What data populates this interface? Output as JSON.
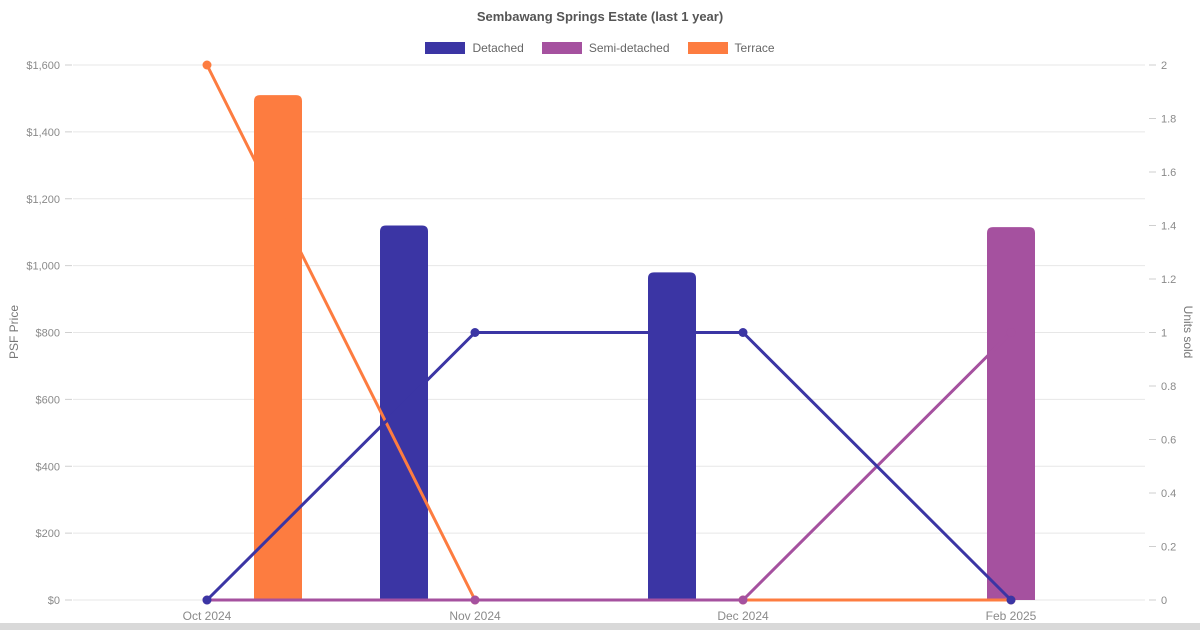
{
  "page": {
    "background": "#ffffff",
    "bottom_bar_color": "#d9d9d9"
  },
  "chart_data": {
    "type": "bar+line combo",
    "title": "Sembawang Springs Estate (last 1 year)",
    "categories": [
      "Oct 2024",
      "Nov 2024",
      "Dec 2024",
      "Feb 2025"
    ],
    "left_axis": {
      "label": "PSF Price",
      "min": 0,
      "max": 1600,
      "tick_step": 200,
      "tick_labels": [
        "$0",
        "$200",
        "$400",
        "$600",
        "$800",
        "$1,000",
        "$1,200",
        "$1,400",
        "$1,600"
      ]
    },
    "right_axis": {
      "label": "Units sold",
      "min": 0,
      "max": 2,
      "tick_step": 0.2,
      "tick_labels": [
        "0",
        "0.2",
        "0.4",
        "0.6",
        "0.8",
        "1",
        "1.2",
        "1.4",
        "1.6",
        "1.8",
        "2"
      ]
    },
    "legend_position": "top",
    "grid": "horizontal-only",
    "series": [
      {
        "name": "Detached",
        "color": "#3b35a4",
        "bar_psf_price": [
          null,
          1120,
          980,
          null
        ],
        "line_units_sold": [
          0,
          1,
          1,
          0
        ]
      },
      {
        "name": "Semi-detached",
        "color": "#a5519f",
        "bar_psf_price": [
          null,
          null,
          null,
          1115
        ],
        "line_units_sold": [
          0,
          0,
          0,
          1
        ]
      },
      {
        "name": "Terrace",
        "color": "#fd7c40",
        "bar_psf_price": [
          1510,
          null,
          null,
          null
        ],
        "line_units_sold": [
          2,
          0,
          0,
          0
        ]
      }
    ]
  }
}
